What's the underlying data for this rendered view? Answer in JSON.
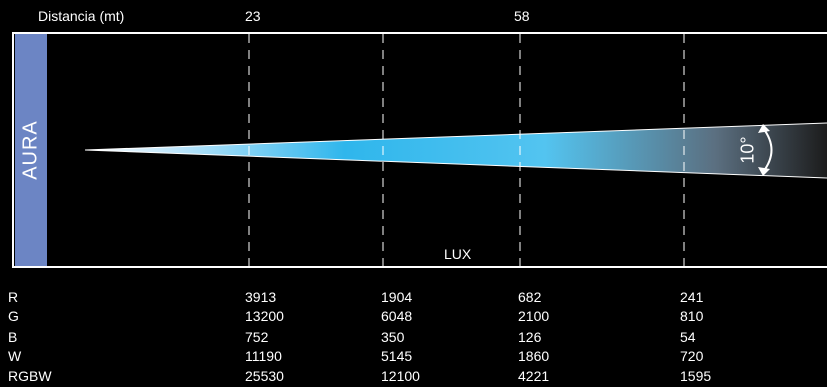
{
  "header": {
    "distance_label": "Distancia (mt)",
    "marks": [
      "23",
      "58"
    ]
  },
  "fixture": {
    "name": "AURA",
    "beam_angle": "10°",
    "unit_label": "LUX"
  },
  "table": {
    "rows": [
      {
        "label": "R",
        "values": [
          "3913",
          "1904",
          "682",
          "241"
        ]
      },
      {
        "label": "G",
        "values": [
          "13200",
          "6048",
          "2100",
          "810"
        ]
      },
      {
        "label": "B",
        "values": [
          "752",
          "350",
          "126",
          "54"
        ]
      },
      {
        "label": "W",
        "values": [
          "11190",
          "5145",
          "1860",
          "720"
        ]
      },
      {
        "label": "RGBW",
        "values": [
          "25530",
          "12100",
          "4221",
          "1595"
        ]
      }
    ]
  },
  "colors": {
    "background": "#000000",
    "side_tab": "#6c85c4",
    "beam_core": "#2fb6ec",
    "line": "#ffffff"
  }
}
